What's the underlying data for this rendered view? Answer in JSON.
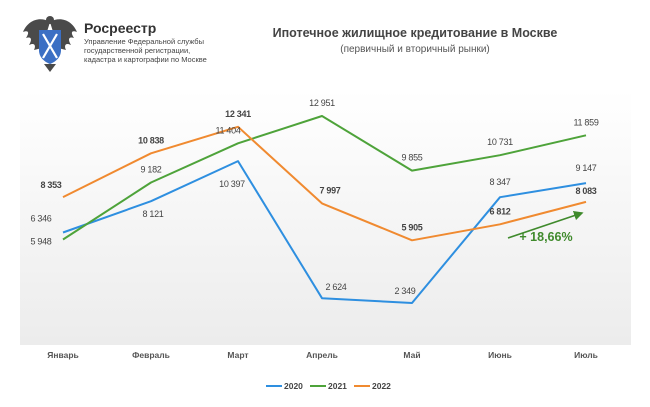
{
  "header": {
    "brand_name": "Росреестр",
    "brand_subtitle": "Управление Федеральной службы государственной регистрации, кадастра и картографии по Москве"
  },
  "chart_data": {
    "type": "line",
    "title": "Ипотечное жилищное кредитование в Москве",
    "subtitle": "(первичный и вторичный рынки)",
    "xlabel": "",
    "ylabel": "",
    "ylim": [
      0,
      14000
    ],
    "grid": false,
    "legend_position": "bottom",
    "categories": [
      "Январь",
      "Февраль",
      "Март",
      "Апрель",
      "Май",
      "Июнь",
      "Июль"
    ],
    "series": [
      {
        "name": "2020",
        "color": "#2e8fe0",
        "values": [
          6346,
          8121,
          10397,
          2624,
          2349,
          8347,
          9147
        ],
        "labels": [
          "6 346",
          "8 121",
          "10 397",
          "2 624",
          "2 349",
          "8 347",
          "9 147"
        ]
      },
      {
        "name": "2021",
        "color": "#4ea33a",
        "values": [
          5948,
          9182,
          11404,
          12951,
          9855,
          10731,
          11859
        ],
        "labels": [
          "5 948",
          "9 182",
          "11 404",
          "12 951",
          "9 855",
          "10 731",
          "11 859"
        ]
      },
      {
        "name": "2022",
        "color": "#f08a30",
        "values": [
          8353,
          10838,
          12341,
          7997,
          5905,
          6812,
          8083
        ],
        "labels": [
          "8 353",
          "10 838",
          "12 341",
          "7 997",
          "5 905",
          "6 812",
          "8 083"
        ]
      }
    ],
    "annotation": {
      "text": "+ 18,66%",
      "color": "#3f8a2c"
    }
  }
}
